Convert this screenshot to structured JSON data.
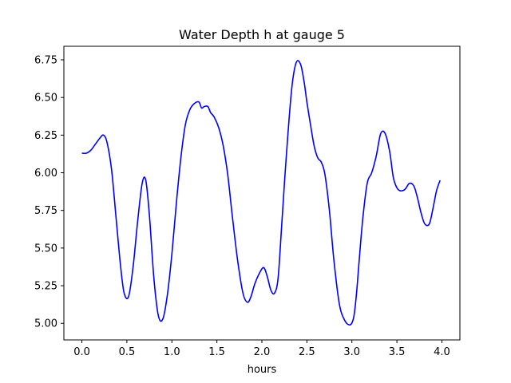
{
  "chart_data": {
    "type": "line",
    "title": "Water Depth h at gauge 5",
    "xlabel": "hours",
    "ylabel": "",
    "xlim": [
      -0.2,
      4.2
    ],
    "ylim": [
      4.89,
      6.84
    ],
    "xticks": [
      0.0,
      0.5,
      1.0,
      1.5,
      2.0,
      2.5,
      3.0,
      3.5,
      4.0
    ],
    "xtick_labels": [
      "0.0",
      "0.5",
      "1.0",
      "1.5",
      "2.0",
      "2.5",
      "3.0",
      "3.5",
      "4.0"
    ],
    "yticks": [
      5.0,
      5.25,
      5.5,
      5.75,
      6.0,
      6.25,
      6.5,
      6.75
    ],
    "ytick_labels": [
      "5.00",
      "5.25",
      "5.50",
      "5.75",
      "6.00",
      "6.25",
      "6.50",
      "6.75"
    ],
    "grid": false,
    "series": [
      {
        "name": "",
        "color": "#0000ff",
        "x": [
          0.0,
          0.05,
          0.1,
          0.15,
          0.2,
          0.24,
          0.28,
          0.33,
          0.38,
          0.43,
          0.47,
          0.52,
          0.57,
          0.62,
          0.67,
          0.71,
          0.75,
          0.8,
          0.85,
          0.9,
          0.95,
          1.0,
          1.05,
          1.1,
          1.15,
          1.2,
          1.25,
          1.3,
          1.33,
          1.36,
          1.4,
          1.43,
          1.47,
          1.52,
          1.57,
          1.62,
          1.67,
          1.73,
          1.79,
          1.84,
          1.88,
          1.92,
          1.97,
          2.02,
          2.06,
          2.1,
          2.14,
          2.18,
          2.22,
          2.27,
          2.33,
          2.38,
          2.43,
          2.47,
          2.5,
          2.54,
          2.58,
          2.62,
          2.66,
          2.7,
          2.75,
          2.8,
          2.86,
          2.92,
          2.98,
          3.02,
          3.05,
          3.08,
          3.12,
          3.17,
          3.22,
          3.27,
          3.32,
          3.37,
          3.42,
          3.46,
          3.5,
          3.54,
          3.59,
          3.64,
          3.69,
          3.73,
          3.77,
          3.81,
          3.86,
          3.9,
          3.94,
          3.98
        ],
        "y": [
          6.13,
          6.13,
          6.15,
          6.19,
          6.23,
          6.25,
          6.2,
          6.02,
          5.7,
          5.38,
          5.2,
          5.18,
          5.38,
          5.68,
          5.93,
          5.95,
          5.72,
          5.3,
          5.05,
          5.03,
          5.19,
          5.46,
          5.8,
          6.1,
          6.32,
          6.42,
          6.46,
          6.47,
          6.43,
          6.44,
          6.44,
          6.4,
          6.37,
          6.3,
          6.18,
          5.99,
          5.72,
          5.42,
          5.2,
          5.14,
          5.18,
          5.26,
          5.33,
          5.37,
          5.31,
          5.22,
          5.2,
          5.3,
          5.65,
          6.1,
          6.55,
          6.73,
          6.72,
          6.6,
          6.47,
          6.32,
          6.18,
          6.1,
          6.07,
          5.99,
          5.75,
          5.42,
          5.13,
          5.02,
          4.99,
          5.04,
          5.19,
          5.41,
          5.69,
          5.93,
          6.0,
          6.11,
          6.26,
          6.26,
          6.14,
          5.97,
          5.9,
          5.88,
          5.89,
          5.93,
          5.91,
          5.83,
          5.73,
          5.66,
          5.66,
          5.76,
          5.88,
          5.95
        ]
      }
    ]
  }
}
